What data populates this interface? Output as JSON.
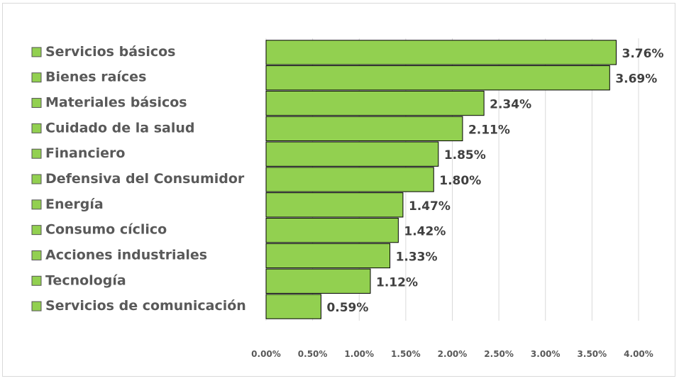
{
  "chart_data": {
    "type": "bar",
    "orientation": "horizontal",
    "categories": [
      "Servicios básicos",
      "Bienes raíces",
      "Materiales básicos",
      "Cuidado de la salud",
      "Financiero",
      "Defensiva del Consumidor",
      "Energía",
      "Consumo cíclico",
      "Acciones industriales",
      "Tecnología",
      "Servicios de comunicación"
    ],
    "values": [
      3.76,
      3.69,
      2.34,
      2.11,
      1.85,
      1.8,
      1.47,
      1.42,
      1.33,
      1.12,
      0.59
    ],
    "value_labels": [
      "3.76%",
      "3.69%",
      "2.34%",
      "2.11%",
      "1.85%",
      "1.80%",
      "1.47%",
      "1.42%",
      "1.33%",
      "1.12%",
      "0.59%"
    ],
    "x_ticks": [
      "0.00%",
      "0.50%",
      "1.00%",
      "1.50%",
      "2.00%",
      "2.50%",
      "3.00%",
      "3.50%",
      "4.00%"
    ],
    "xlim": [
      0,
      4
    ],
    "title": "",
    "xlabel": "",
    "ylabel": "",
    "grid": true,
    "legend_position": "left",
    "bar_color": "#92d050",
    "bar_border_color": "#000000",
    "grid_color": "#d9d9d9"
  }
}
